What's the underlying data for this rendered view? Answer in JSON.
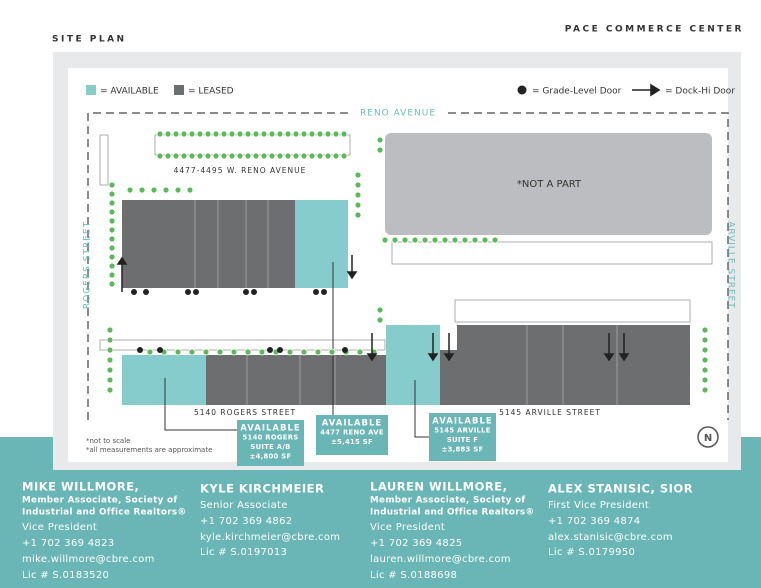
{
  "header": {
    "title": "SITE PLAN",
    "brand": "PACE COMMERCE CENTER"
  },
  "legend": {
    "available": "= AVAILABLE",
    "leased": "= LEASED",
    "grade_door": "= Grade-Level Door",
    "dock_door": "= Dock-Hi Door"
  },
  "map": {
    "streets": {
      "north": "RENO AVENUE",
      "west": "ROGERS STREET",
      "east": "ARVILLE STREET",
      "south_west": "5140 ROGERS STREET",
      "south_east": "5145 ARVILLE STREET"
    },
    "building_label": "4477-4495 W. RENO AVENUE",
    "not_a_part": "*NOT A PART",
    "callouts": [
      {
        "lines": [
          "AVAILABLE",
          "5140 ROGERS",
          "SUITE A/B",
          "±4,800 SF"
        ]
      },
      {
        "lines": [
          "AVAILABLE",
          "4477 RENO AVE",
          "±5,415 SF"
        ]
      },
      {
        "lines": [
          "AVAILABLE",
          "5145 ARVILLE",
          "SUITE F",
          "±3,883 SF"
        ]
      }
    ],
    "notes": [
      "*not to scale",
      "*all measurements are approximate"
    ]
  },
  "contacts": [
    {
      "name": "MIKE WILLMORE,",
      "lines": [
        "Member Associate, Society of",
        "Industrial and Office Realtors®",
        "Vice President",
        "+1 702 369 4823",
        "mike.willmore@cbre.com",
        "Lic # S.0183520"
      ]
    },
    {
      "name": "KYLE KIRCHMEIER",
      "lines": [
        "Senior Associate",
        "+1 702 369 4862",
        "kyle.kirchmeier@cbre.com",
        "Lic # S.0197013"
      ]
    },
    {
      "name": "LAUREN WILLMORE,",
      "lines": [
        "Member Associate, Society of",
        "Industrial and Office Realtors®",
        "Vice President",
        "+1 702 369 4825",
        "lauren.willmore@cbre.com",
        "Lic # S.0188698"
      ]
    },
    {
      "name": "ALEX STANISIC, SIOR",
      "lines": [
        "First Vice President",
        "+1 702 369 4874",
        "alex.stanisic@cbre.com",
        "Lic # S.0179950"
      ]
    }
  ]
}
